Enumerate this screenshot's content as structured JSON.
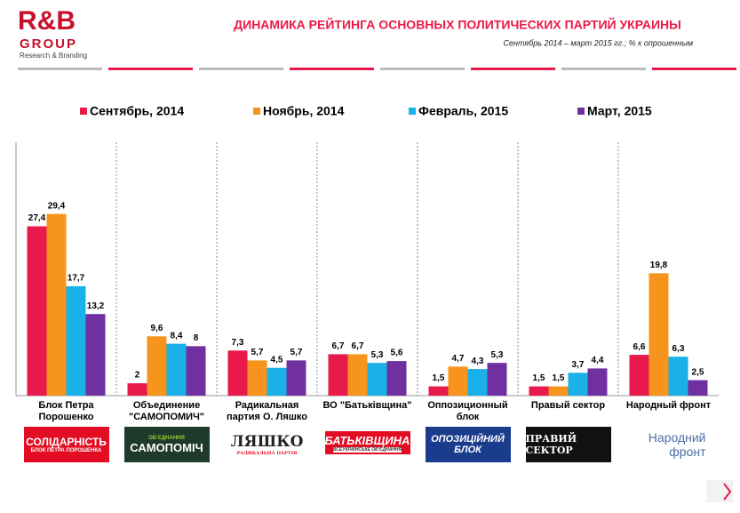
{
  "header": {
    "logo": "R&B",
    "group": "GROUP",
    "tagline": "Research & Branding"
  },
  "chart_data": {
    "type": "bar",
    "title": "ДИНАМИКА РЕЙТИНГА ОСНОВНЫХ ПОЛИТИЧЕСКИХ ПАРТИЙ УКРАИНЫ",
    "subtitle": "Сентябрь 2014 –  март 2015 гг.;  % к опрошенным",
    "categories": [
      "Блок Петра Порошенко",
      "Объединение \"САМОПОМИЧ\"",
      "Радикальная партия О. Ляшко",
      "ВО \"Батьківщина\"",
      "Оппозиционный блок",
      "Правый сектор",
      "Народный фронт"
    ],
    "series": [
      {
        "name": "Сентябрь, 2014",
        "color": "#e8194b",
        "values": [
          27.4,
          2,
          7.3,
          6.7,
          1.5,
          1.5,
          6.6
        ],
        "value_labels": [
          "27,4",
          "2",
          "7,3",
          "6,7",
          "1,5",
          "1,5",
          "6,6"
        ]
      },
      {
        "name": "Ноябрь, 2014",
        "color": "#f7941d",
        "values": [
          29.4,
          9.6,
          5.7,
          6.7,
          4.7,
          1.5,
          19.8
        ],
        "value_labels": [
          "29,4",
          "9,6",
          "5,7",
          "6,7",
          "4,7",
          "1,5",
          "19,8"
        ]
      },
      {
        "name": "Февраль, 2015",
        "color": "#1ab0e8",
        "values": [
          17.7,
          8.4,
          4.5,
          5.3,
          4.3,
          3.7,
          6.3
        ],
        "value_labels": [
          "17,7",
          "8,4",
          "4,5",
          "5,3",
          "4,3",
          "3,7",
          "6,3"
        ]
      },
      {
        "name": "Март, 2015",
        "color": "#7030a0",
        "values": [
          13.2,
          8,
          5.7,
          5.6,
          5.3,
          4.4,
          2.5
        ],
        "value_labels": [
          "13,2",
          "8",
          "5,7",
          "5,6",
          "5,3",
          "4,4",
          "2,5"
        ]
      }
    ],
    "ylim": [
      0,
      41
    ],
    "legend": "top"
  },
  "logos": [
    {
      "lines": [
        "СОЛІДАРНІСТЬ",
        "БЛОК ПЕТРА ПОРОШЕНКА"
      ]
    },
    {
      "lines": [
        "ОБ'ЄДНАННЯ",
        "САМОПОМІЧ"
      ]
    },
    {
      "lines": [
        "ЛЯШКО",
        "РАДИКАЛЬНА ПАРТІЯ"
      ]
    },
    {
      "lines": [
        "БАТЬКІВЩИНА",
        "ВСЕУКРАЇНСЬКЕ ОБ'ЄДНАННЯ"
      ]
    },
    {
      "lines": [
        "ОПОЗИЦІЙНИЙ",
        "БЛОК"
      ]
    },
    {
      "lines": [
        "ПРАВИЙ СЕКТОР"
      ]
    },
    {
      "lines": [
        "Народний",
        "фронт"
      ]
    }
  ]
}
